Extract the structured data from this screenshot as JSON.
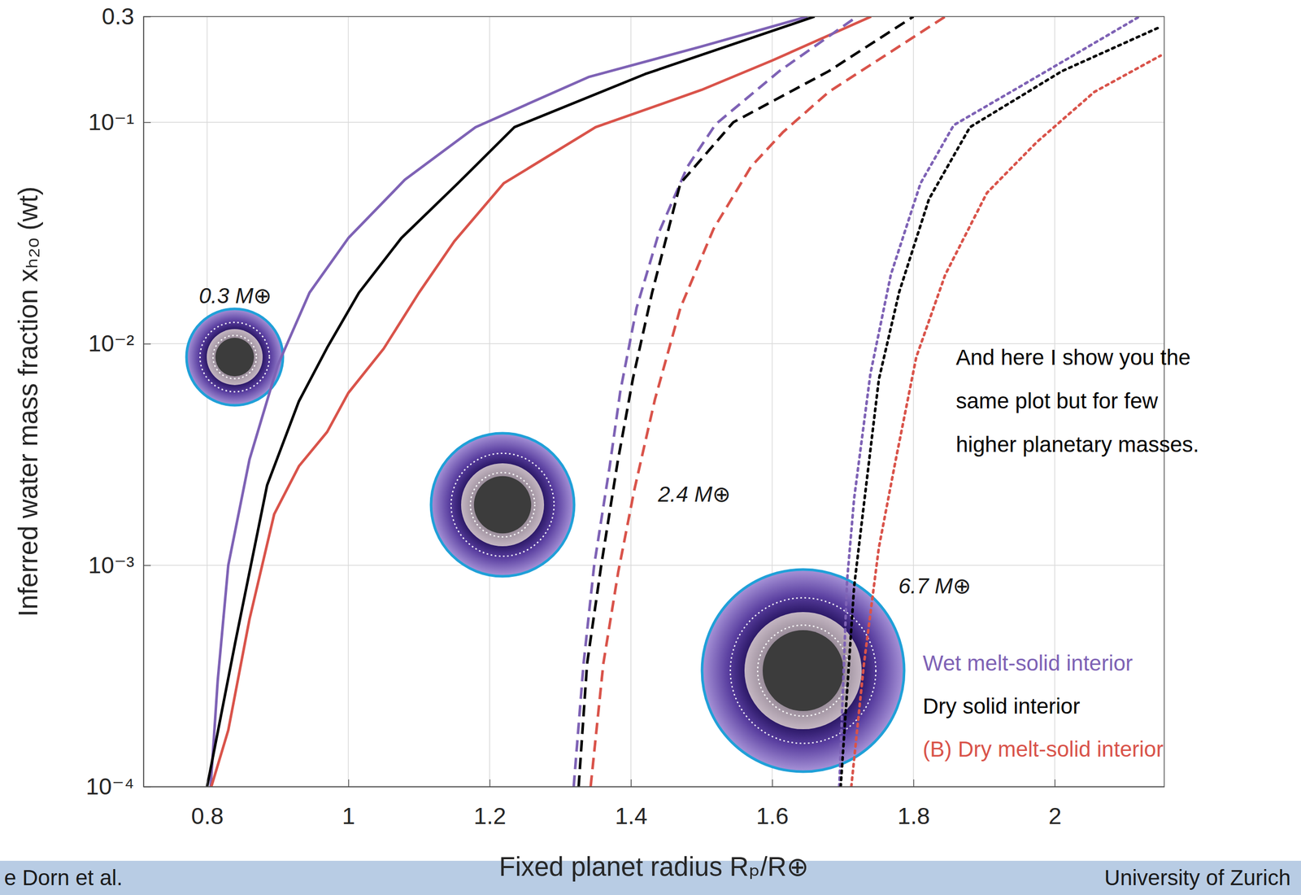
{
  "chart_data": {
    "type": "line",
    "x_label": "Fixed planet radius Rₚ/R⊕",
    "y_label": "Inferred water mass fraction xₕ₂ₒ (wt)",
    "xlim": [
      0.71,
      2.155
    ],
    "ylim": [
      0.0001,
      0.3
    ],
    "xticks": [
      0.8,
      1,
      1.2,
      1.4,
      1.6,
      1.8,
      2
    ],
    "yticks": [
      {
        "value": 0.0001,
        "label": "10⁻⁴"
      },
      {
        "value": 0.001,
        "label": "10⁻³"
      },
      {
        "value": 0.01,
        "label": "10⁻²"
      },
      {
        "value": 0.1,
        "label": "10⁻¹"
      },
      0.3
    ],
    "log": "y",
    "grid": true,
    "legend": "lower right",
    "annotations": [
      "0.3 M⊕",
      "2.4 M⊕",
      "6.7 M⊕"
    ],
    "note": [
      "And here I show you the",
      "same plot but for few",
      "higher planetary masses."
    ],
    "series": [
      {
        "name": "Wet melt-solid interior",
        "color": "#7e62b5",
        "line_style": "solid",
        "x": [
          0.805,
          0.815,
          0.83,
          0.86,
          0.9,
          0.945,
          1.0,
          1.08,
          1.18,
          1.34,
          1.5,
          1.65
        ],
        "values": [
          0.0001,
          0.0003,
          0.001,
          0.003,
          0.008,
          0.017,
          0.03,
          0.055,
          0.095,
          0.16,
          0.22,
          0.3
        ]
      },
      {
        "name": "Dry solid interior",
        "color": "#000000",
        "line_style": "solid",
        "x": [
          0.8,
          0.84,
          0.885,
          0.93,
          0.97,
          1.015,
          1.075,
          1.155,
          1.235,
          1.42,
          1.66
        ],
        "values": [
          0.0001,
          0.00045,
          0.0023,
          0.0055,
          0.0096,
          0.017,
          0.03,
          0.053,
          0.095,
          0.165,
          0.3
        ]
      },
      {
        "name": "(B) Dry melt-solid interior",
        "color": "#d9534a",
        "line_style": "solid",
        "x": [
          0.806,
          0.83,
          0.86,
          0.895,
          0.93,
          0.97,
          1.0,
          1.05,
          1.1,
          1.15,
          1.22,
          1.35,
          1.5,
          1.6,
          1.74
        ],
        "values": [
          0.0001,
          0.00018,
          0.00057,
          0.0017,
          0.0028,
          0.004,
          0.006,
          0.0095,
          0.017,
          0.029,
          0.053,
          0.095,
          0.14,
          0.19,
          0.3
        ]
      },
      {
        "name": "Wet melt-solid interior",
        "color": "#7e62b5",
        "line_style": "dashed",
        "x": [
          1.319,
          1.333,
          1.348,
          1.37,
          1.385,
          1.408,
          1.44,
          1.48,
          1.52,
          1.61,
          1.72
        ],
        "values": [
          0.0001,
          0.00036,
          0.001,
          0.0028,
          0.0061,
          0.0145,
          0.032,
          0.063,
          0.098,
          0.17,
          0.3
        ]
      },
      {
        "name": "Dry solid interior",
        "color": "#000000",
        "line_style": "dashed",
        "x": [
          1.326,
          1.338,
          1.358,
          1.381,
          1.403,
          1.43,
          1.47,
          1.545,
          1.68,
          1.8
        ],
        "values": [
          0.0001,
          0.00036,
          0.001,
          0.0029,
          0.007,
          0.017,
          0.053,
          0.1,
          0.17,
          0.3
        ]
      },
      {
        "name": "(B) Dry melt-solid interior",
        "color": "#d9534a",
        "line_style": "dashed",
        "x": [
          1.343,
          1.361,
          1.382,
          1.405,
          1.434,
          1.47,
          1.517,
          1.57,
          1.615,
          1.68,
          1.845
        ],
        "values": [
          0.0001,
          0.00036,
          0.00093,
          0.0022,
          0.0056,
          0.0145,
          0.033,
          0.063,
          0.09,
          0.137,
          0.3
        ]
      },
      {
        "name": "Wet melt-solid interior",
        "color": "#7e62b5",
        "line_style": "dotted",
        "x": [
          1.695,
          1.706,
          1.716,
          1.739,
          1.768,
          1.81,
          1.857,
          1.974,
          2.12
        ],
        "values": [
          0.0001,
          0.00085,
          0.002,
          0.0073,
          0.0205,
          0.053,
          0.097,
          0.16,
          0.3
        ]
      },
      {
        "name": "Dry solid interior",
        "color": "#000000",
        "line_style": "dotted",
        "x": [
          1.697,
          1.716,
          1.73,
          1.751,
          1.78,
          1.822,
          1.88,
          2.01,
          2.15
        ],
        "values": [
          0.0001,
          0.0008,
          0.0019,
          0.0069,
          0.0172,
          0.045,
          0.095,
          0.17,
          0.27
        ]
      },
      {
        "name": "(B) Dry melt-solid interior",
        "color": "#d9534a",
        "line_style": "dotted",
        "x": [
          1.712,
          1.73,
          1.751,
          1.775,
          1.804,
          1.845,
          1.904,
          1.974,
          2.056,
          2.15
        ],
        "values": [
          0.0001,
          0.00036,
          0.0012,
          0.003,
          0.0087,
          0.0205,
          0.048,
          0.081,
          0.137,
          0.2
        ]
      }
    ]
  },
  "footer": {
    "left": "e Dorn et al.",
    "right": "University of Zurich"
  }
}
